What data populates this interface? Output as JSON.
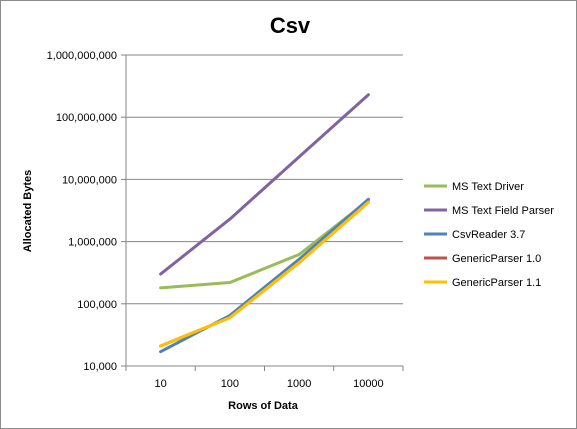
{
  "chart_data": {
    "type": "line",
    "title": "Csv",
    "xlabel": "Rows of Data",
    "ylabel": "Allocated Bytes",
    "x_scale": "categorical",
    "y_scale": "log",
    "categories": [
      "10",
      "100",
      "1000",
      "10000"
    ],
    "y_ticks": [
      "10,000",
      "100,000",
      "1,000,000",
      "10,000,000",
      "100,000,000",
      "1,000,000,000"
    ],
    "ylim": [
      10000,
      1000000000
    ],
    "grid": "horizontal",
    "legend_position": "right",
    "series": [
      {
        "name": "MS Text Driver",
        "color": "#9bbb59",
        "values": [
          180000,
          220000,
          620000,
          4600000
        ]
      },
      {
        "name": "MS Text Field Parser",
        "color": "#8064a2",
        "values": [
          300000,
          2300000,
          23000000,
          230000000
        ]
      },
      {
        "name": "CsvReader 3.7",
        "color": "#4f81bd",
        "values": [
          17000,
          65000,
          520000,
          4800000
        ]
      },
      {
        "name": "GenericParser 1.0",
        "color": "#c0504d",
        "values": [
          21000,
          60000,
          460000,
          4300000
        ]
      },
      {
        "name": "GenericParser 1.1",
        "color": "#ffc000",
        "values": [
          21000,
          60000,
          460000,
          4300000
        ]
      }
    ]
  }
}
